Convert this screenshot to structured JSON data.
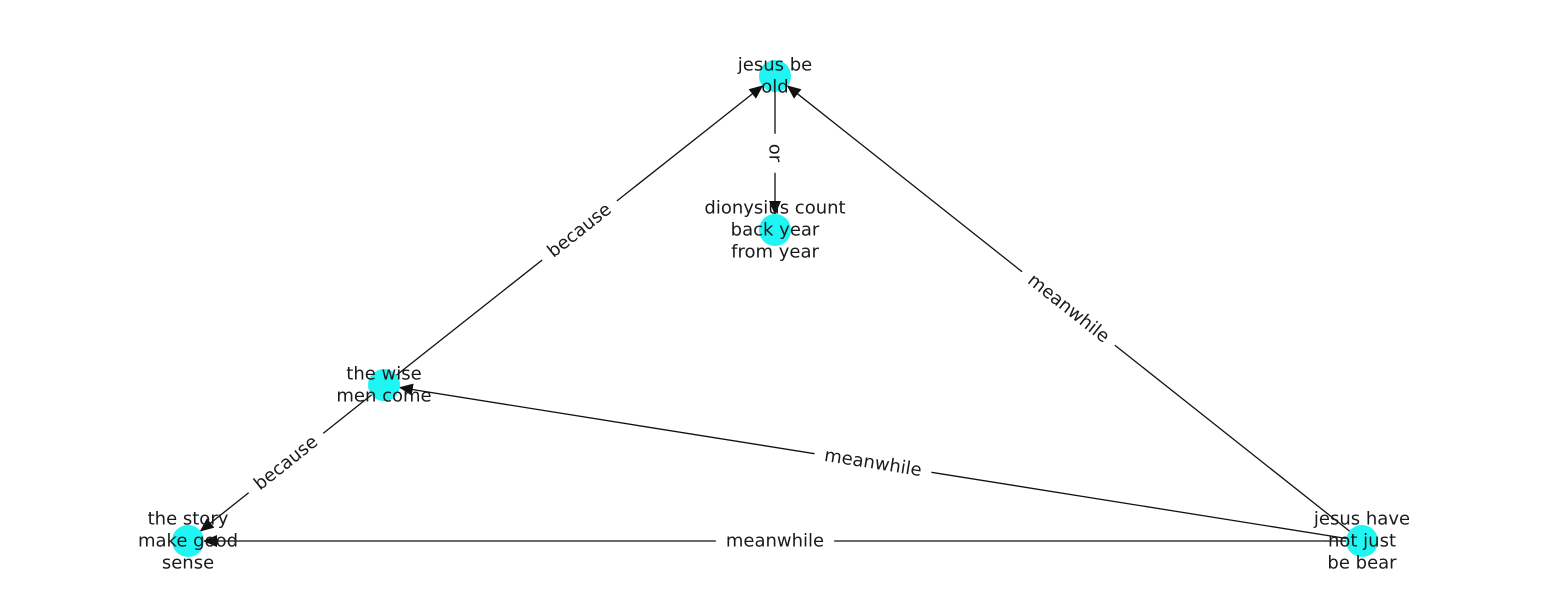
{
  "graph": {
    "node_color": "#1ff5f2",
    "edge_color": "#111111",
    "nodes": [
      {
        "id": "n1",
        "lines": [
          "jesus be",
          "old"
        ]
      },
      {
        "id": "n2",
        "lines": [
          "dionysius count",
          "back year",
          "from year"
        ]
      },
      {
        "id": "n3",
        "lines": [
          "the wise",
          "men come"
        ]
      },
      {
        "id": "n4",
        "lines": [
          "the story",
          "make good",
          "sense"
        ]
      },
      {
        "id": "n5",
        "lines": [
          "jesus have",
          "not just",
          "be bear"
        ]
      }
    ],
    "edges": [
      {
        "from": "n1",
        "to": "n2",
        "label": "or"
      },
      {
        "from": "n3",
        "to": "n1",
        "label": "because"
      },
      {
        "from": "n3",
        "to": "n4",
        "label": "because"
      },
      {
        "from": "n5",
        "to": "n1",
        "label": "meanwhile"
      },
      {
        "from": "n5",
        "to": "n3",
        "label": "meanwhile"
      },
      {
        "from": "n5",
        "to": "n4",
        "label": "meanwhile"
      }
    ]
  }
}
